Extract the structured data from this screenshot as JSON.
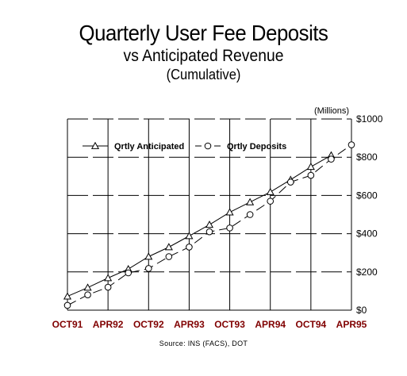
{
  "title": "Quarterly User Fee Deposits",
  "subtitle": "vs Anticipated Revenue",
  "subtitle2": "(Cumulative)",
  "source": "Source: INS (FACS), DOT",
  "colors": {
    "axis_text": "#800000",
    "line": "#000000",
    "grid": "#000000"
  },
  "chart_data": {
    "type": "line",
    "ylabel": "(Millions)",
    "ylim": [
      0,
      1000
    ],
    "yticks": [
      {
        "value": 0,
        "label": "$0"
      },
      {
        "value": 200,
        "label": "$200"
      },
      {
        "value": 400,
        "label": "$400"
      },
      {
        "value": 600,
        "label": "$600"
      },
      {
        "value": 800,
        "label": "$800"
      },
      {
        "value": 1000,
        "label": "$1000"
      }
    ],
    "xtick_labels": [
      "OCT91",
      "APR92",
      "OCT92",
      "APR93",
      "OCT93",
      "APR94",
      "OCT94",
      "APR95"
    ],
    "grid": true,
    "legend_position": "top-left",
    "series": [
      {
        "name": "Qrtly Anticipated",
        "marker": "triangle",
        "linestyle": "solid",
        "values": [
          72,
          118,
          168,
          215,
          280,
          330,
          388,
          447,
          512,
          565,
          618,
          682,
          750,
          810
        ]
      },
      {
        "name": "Qrtly Deposits",
        "marker": "circle",
        "linestyle": "dashed",
        "values": [
          25,
          80,
          120,
          195,
          218,
          280,
          330,
          410,
          430,
          500,
          570,
          670,
          705,
          790,
          865
        ]
      }
    ]
  }
}
